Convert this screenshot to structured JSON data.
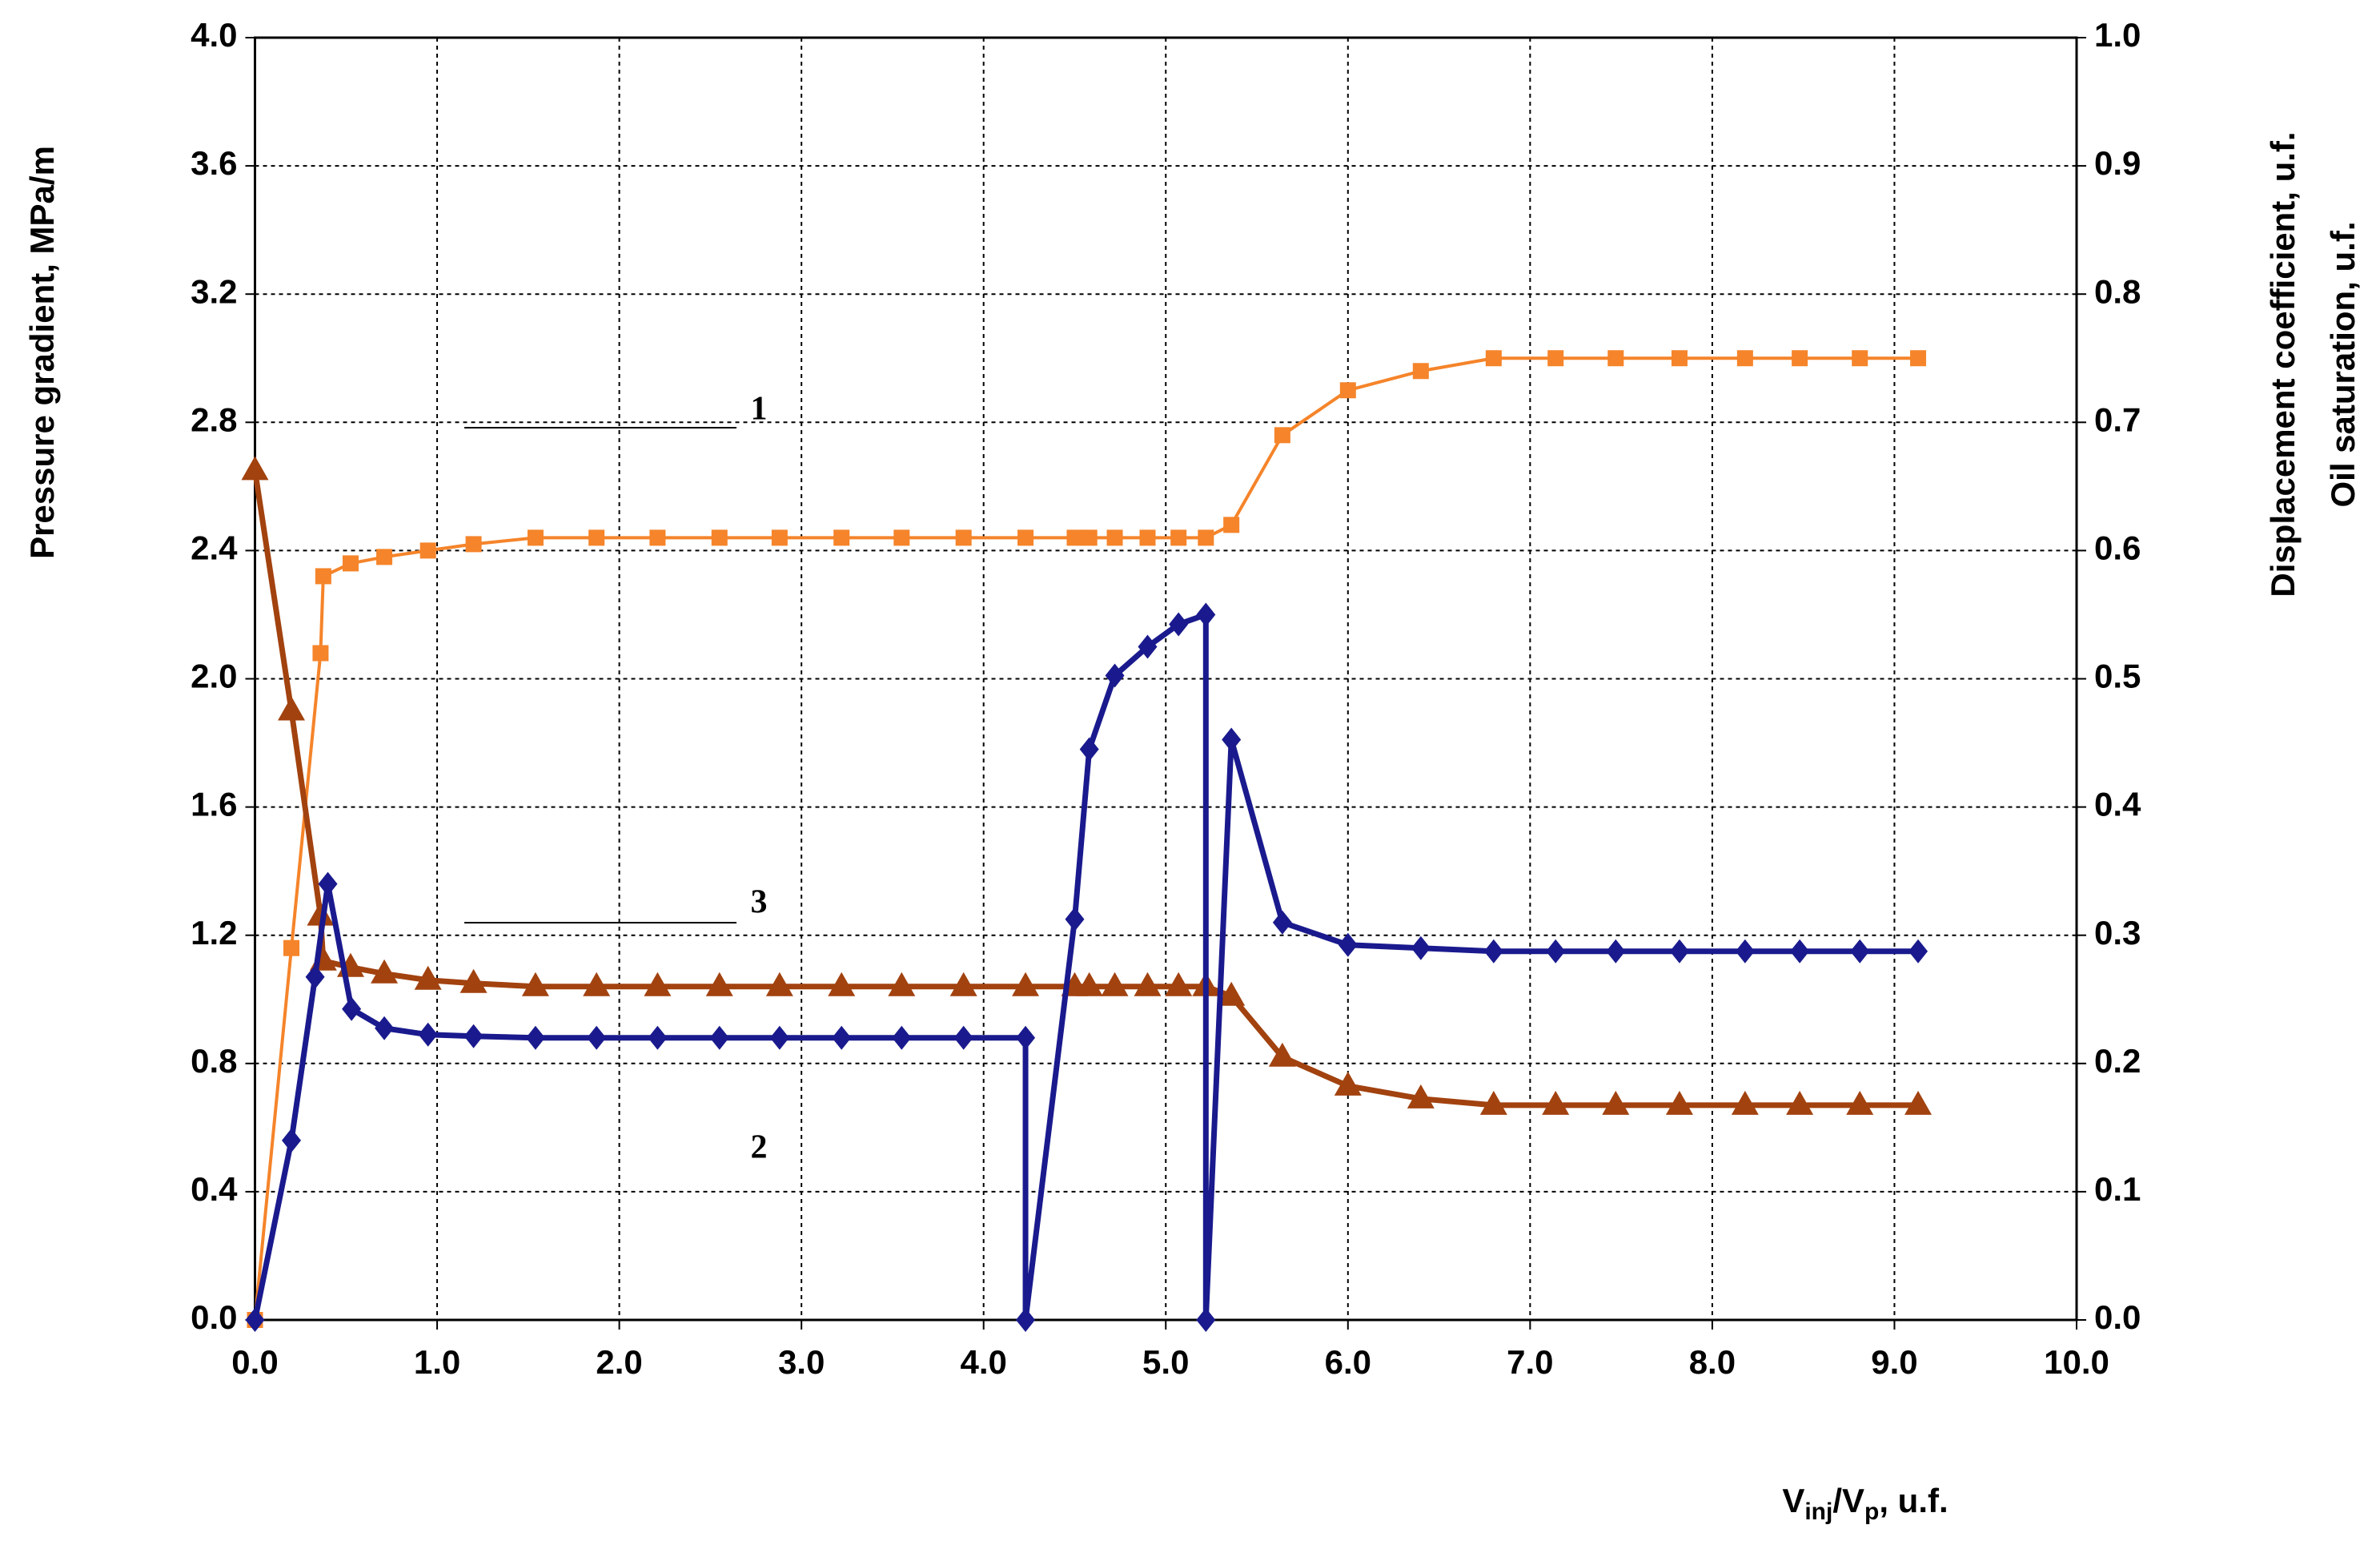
{
  "chart_data": {
    "type": "line",
    "ylabel": "Pressure gradient, MPa/m",
    "y2label": [
      "Displacement coefficient, u.f.",
      "Oil saturation, u.f."
    ],
    "xlabel_parts": [
      "V",
      "inj",
      "/V",
      "p",
      ", u.f."
    ],
    "annotations": [
      "1",
      "2",
      "3"
    ],
    "xlim": [
      0,
      10
    ],
    "xticks": [
      {
        "value": 0,
        "label": "0.0"
      },
      {
        "value": 1,
        "label": "1.0"
      },
      {
        "value": 2,
        "label": "2.0"
      },
      {
        "value": 3,
        "label": "3.0"
      },
      {
        "value": 4,
        "label": "4.0"
      },
      {
        "value": 5,
        "label": "5.0"
      },
      {
        "value": 6,
        "label": "6.0"
      },
      {
        "value": 7,
        "label": "7.0"
      },
      {
        "value": 8,
        "label": "8.0"
      },
      {
        "value": 9,
        "label": "9.0"
      },
      {
        "value": 10,
        "label": "10.0"
      }
    ],
    "ylim": [
      0,
      4
    ],
    "yticks": [
      {
        "value": 0,
        "label": "0.0"
      },
      0.4,
      0.8,
      1.2,
      1.6,
      {
        "value": 2,
        "label": "2.0"
      },
      2.4,
      2.8,
      3.2,
      3.6,
      {
        "value": 4,
        "label": "4.0"
      }
    ],
    "y2lim": [
      0,
      1
    ],
    "y2ticks": [
      {
        "value": 0,
        "label": "0.0"
      },
      0.1,
      0.2,
      0.3,
      0.4,
      0.5,
      0.6,
      0.7,
      0.8,
      0.9,
      {
        "value": 1,
        "label": "1.0"
      }
    ],
    "grid": true,
    "series": [
      {
        "color": "#f5842a",
        "marker": "square",
        "width": 4,
        "axis": "y2",
        "x": [
          0,
          0.2,
          0.36,
          0.375,
          0.525,
          0.71,
          0.95,
          1.2,
          1.54,
          1.875,
          2.21,
          2.55,
          2.88,
          3.22,
          3.55,
          3.89,
          4.23,
          4.5,
          4.58,
          4.72,
          4.9,
          5.07,
          5.22,
          5.36,
          5.64,
          6.0,
          6.4,
          6.8,
          7.14,
          7.47,
          7.82,
          8.18,
          8.48,
          8.81,
          9.13
        ],
        "values": [
          0,
          0.29,
          0.52,
          0.58,
          0.59,
          0.595,
          0.6,
          0.605,
          0.61,
          0.61,
          0.61,
          0.61,
          0.61,
          0.61,
          0.61,
          0.61,
          0.61,
          0.61,
          0.61,
          0.61,
          0.61,
          0.61,
          0.61,
          0.62,
          0.69,
          0.725,
          0.74,
          0.75,
          0.75,
          0.75,
          0.75,
          0.75,
          0.75,
          0.75,
          0.75
        ]
      },
      {
        "color": "#a2420f",
        "marker": "triangle",
        "width": 7,
        "x": [
          0,
          0.2,
          0.36,
          0.375,
          0.525,
          0.71,
          0.95,
          1.2,
          1.54,
          1.875,
          2.21,
          2.55,
          2.88,
          3.22,
          3.55,
          3.89,
          4.23,
          4.5,
          4.58,
          4.72,
          4.9,
          5.07,
          5.22,
          5.36,
          5.64,
          6.0,
          6.4,
          6.8,
          7.14,
          7.47,
          7.82,
          8.18,
          8.48,
          8.81,
          9.13
        ],
        "values": [
          2.65,
          1.9,
          1.26,
          1.12,
          1.1,
          1.08,
          1.06,
          1.05,
          1.04,
          1.04,
          1.04,
          1.04,
          1.04,
          1.04,
          1.04,
          1.04,
          1.04,
          1.04,
          1.04,
          1.04,
          1.04,
          1.04,
          1.04,
          1.01,
          0.82,
          0.73,
          0.69,
          0.67,
          0.67,
          0.67,
          0.67,
          0.67,
          0.67,
          0.67,
          0.67
        ]
      },
      {
        "color": "#1a1a8e",
        "marker": "diamond",
        "width": 7,
        "x": [
          0,
          0.2,
          0.33,
          0.4,
          0.53,
          0.71,
          0.95,
          1.2,
          1.54,
          1.875,
          2.21,
          2.55,
          2.88,
          3.22,
          3.55,
          3.89,
          4.23,
          4.23,
          4.5,
          4.58,
          4.72,
          4.9,
          5.07,
          5.22,
          5.22,
          5.36,
          5.64,
          6.0,
          6.4,
          6.8,
          7.14,
          7.47,
          7.82,
          8.18,
          8.48,
          8.81,
          9.13
        ],
        "values": [
          0,
          0.56,
          1.07,
          1.36,
          0.97,
          0.91,
          0.89,
          0.885,
          0.88,
          0.88,
          0.88,
          0.88,
          0.88,
          0.88,
          0.88,
          0.88,
          0.88,
          0,
          1.25,
          1.78,
          2.01,
          2.1,
          2.17,
          2.2,
          0,
          1.81,
          1.24,
          1.17,
          1.16,
          1.15,
          1.15,
          1.15,
          1.15,
          1.15,
          1.15,
          1.15,
          1.15
        ]
      }
    ]
  }
}
